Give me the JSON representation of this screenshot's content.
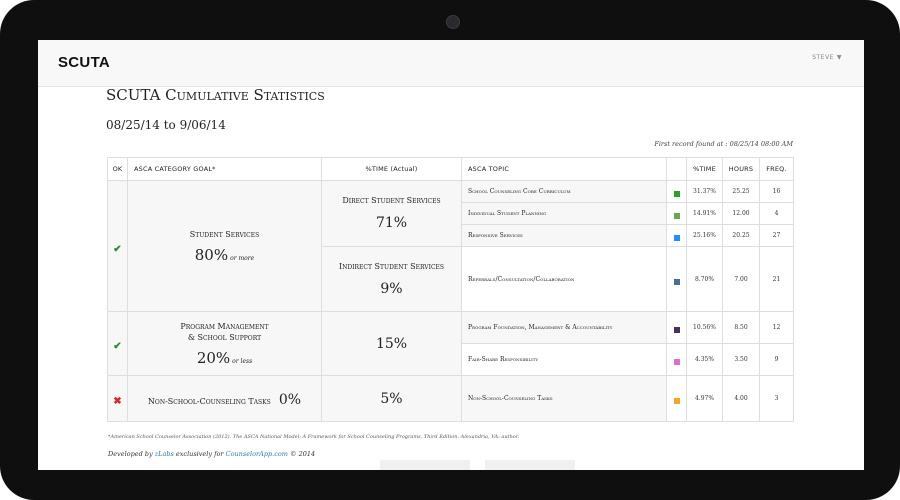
{
  "brand": "SCUTA",
  "user_menu": "STEVE",
  "page_title": "SCUTA Cumulative Statistics",
  "date_range": "08/25/14 to 9/06/14",
  "first_record": "First record found at : 08/25/14 08:00 AM",
  "table": {
    "headers": {
      "ok": "OK",
      "goal": "ASCA CATEGORY GOAL*",
      "time_actual": "%TIME (Actual)",
      "topic": "ASCA TOPIC",
      "pct_time": "%TIME",
      "hours": "HOURS",
      "freq": "FREQ."
    },
    "categories": [
      {
        "status": "✔",
        "name": "Student Services",
        "target": "80%",
        "target_qualifier": "or more",
        "subgroups": [
          {
            "label": "Direct Student Services",
            "pct": "71%",
            "topics": [
              {
                "topic": "School Counseling Core Curriculum",
                "color": "#2ca02c",
                "pct": "31.37%",
                "hours": "25.25",
                "freq": "16"
              },
              {
                "topic": "Individual Student Planning",
                "color": "#6aa84f",
                "pct": "14.91%",
                "hours": "12.00",
                "freq": "4"
              },
              {
                "topic": "Responsive Services",
                "color": "#1e90ff",
                "pct": "25.16%",
                "hours": "20.25",
                "freq": "27"
              }
            ]
          },
          {
            "label": "Indirect Student Services",
            "pct": "9%",
            "topics": [
              {
                "topic": "Referrals/Consultation/Collaboration",
                "color": "#4f6d94",
                "pct": "8.70%",
                "hours": "7.00",
                "freq": "21"
              }
            ]
          }
        ]
      },
      {
        "status": "✔",
        "name_line1": "Program Management",
        "name_line2": "& School Support",
        "target": "20%",
        "target_qualifier": "or less",
        "pct": "15%",
        "topics": [
          {
            "topic": "Program Foundation, Management & Accountability",
            "color": "#4b2d5e",
            "pct": "10.56%",
            "hours": "8.50",
            "freq": "12"
          },
          {
            "topic": "Fair-Share Responsibility",
            "color": "#d66fd6",
            "pct": "4.35%",
            "hours": "3.50",
            "freq": "9"
          }
        ]
      },
      {
        "status": "✖",
        "name": "Non-School-Counseling Tasks",
        "target": "0%",
        "pct": "5%",
        "topics": [
          {
            "topic": "Non-School-Counseling Tasks",
            "color": "#f5a623",
            "pct": "4.97%",
            "hours": "4.00",
            "freq": "3"
          }
        ]
      }
    ]
  },
  "footnote": "*American School Counselor Association (2012). The ASCA National Model: A Framework for School Counseling Programs, Third Edition. Alexandria, VA: author.",
  "footer": {
    "prefix": "Developed by",
    "company": "zLabs",
    "middle": "exclusively for",
    "site": "CounselorApp.com",
    "suffix": "© 2014"
  }
}
